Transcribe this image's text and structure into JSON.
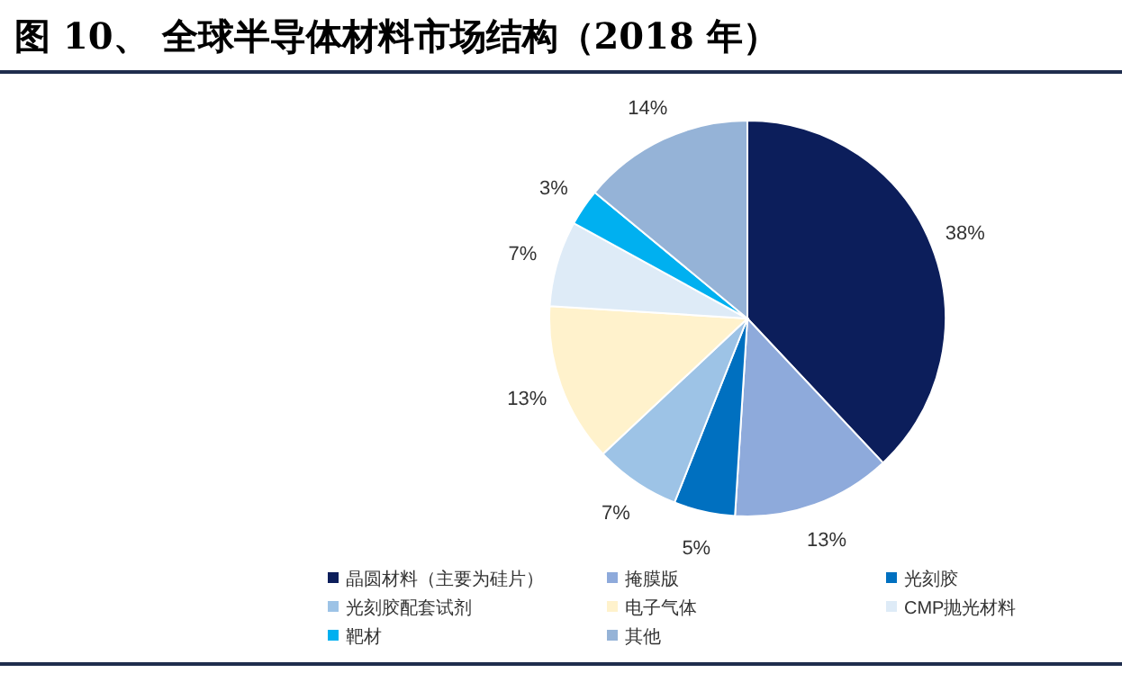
{
  "chart_data": {
    "type": "pie",
    "title": "图 10、 全球半导体材料市场结构（2018 年）",
    "categories": [
      "晶圆材料（主要为硅片）",
      "掩膜版",
      "光刻胶",
      "光刻胶配套试剂",
      "电子气体",
      "CMP抛光材料",
      "靶材",
      "其他"
    ],
    "values": [
      38,
      13,
      5,
      7,
      13,
      7,
      3,
      14
    ],
    "colors": [
      "#0c1e5b",
      "#8eaadb",
      "#0070c0",
      "#9dc3e6",
      "#fff2cc",
      "#deebf7",
      "#00b0f0",
      "#95b3d7"
    ],
    "value_labels": [
      "38%",
      "13%",
      "5%",
      "7%",
      "13%",
      "7%",
      "3%",
      "14%"
    ],
    "legend": "bottom"
  }
}
